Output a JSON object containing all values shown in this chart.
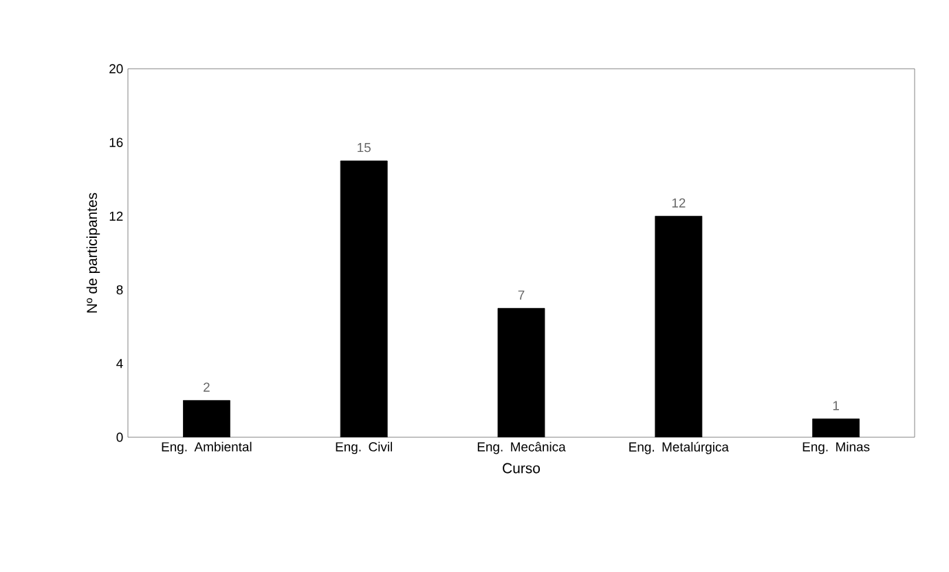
{
  "chart_data": {
    "type": "bar",
    "xlabel": "Curso",
    "ylabel": "Nº de participantes",
    "categories": [
      "Eng. Ambiental",
      "Eng. Civil",
      "Eng. Mecânica",
      "Eng. Metalúrgica",
      "Eng. Minas"
    ],
    "values": [
      2,
      15,
      7,
      12,
      1
    ],
    "color": "#000000",
    "ylim": [
      0,
      20
    ],
    "yticks": [
      0,
      4,
      8,
      12,
      16,
      20
    ],
    "grid": false,
    "data_labels": true
  }
}
